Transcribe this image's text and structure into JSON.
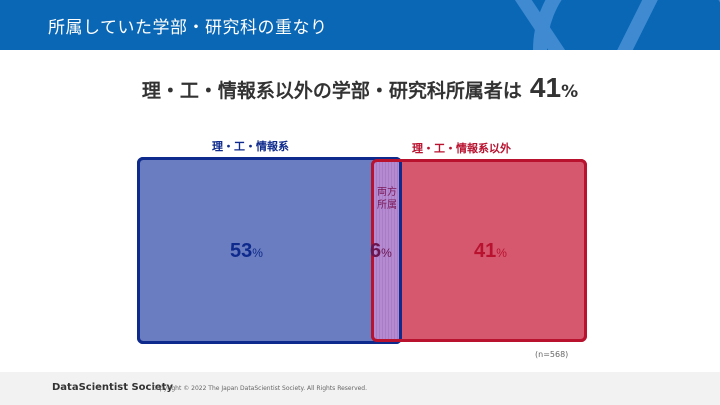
{
  "header": {
    "title": "所属していた学部・研究科の重なり"
  },
  "headline": {
    "text": "理・工・情報系以外の学部・研究科所属者は",
    "value": "41",
    "unit": "%"
  },
  "diagram": {
    "left": {
      "label": "理・工・情報系",
      "value": "53",
      "unit": "%",
      "color": "#6a7dc0",
      "border": "#0e2a8c"
    },
    "overlap": {
      "label_line1": "両方",
      "label_line2": "所属",
      "value": "6",
      "unit": "%",
      "color": "#b68ad0"
    },
    "right": {
      "label": "理・工・情報系以外",
      "value": "41",
      "unit": "%",
      "color": "#d6586e",
      "border": "#b8122f"
    },
    "n": "(n=568)"
  },
  "footer": {
    "brand": "DataScientist Society",
    "copyright": "Copyright © 2022  The Japan DataScientist Society. All Rights Reserved."
  }
}
